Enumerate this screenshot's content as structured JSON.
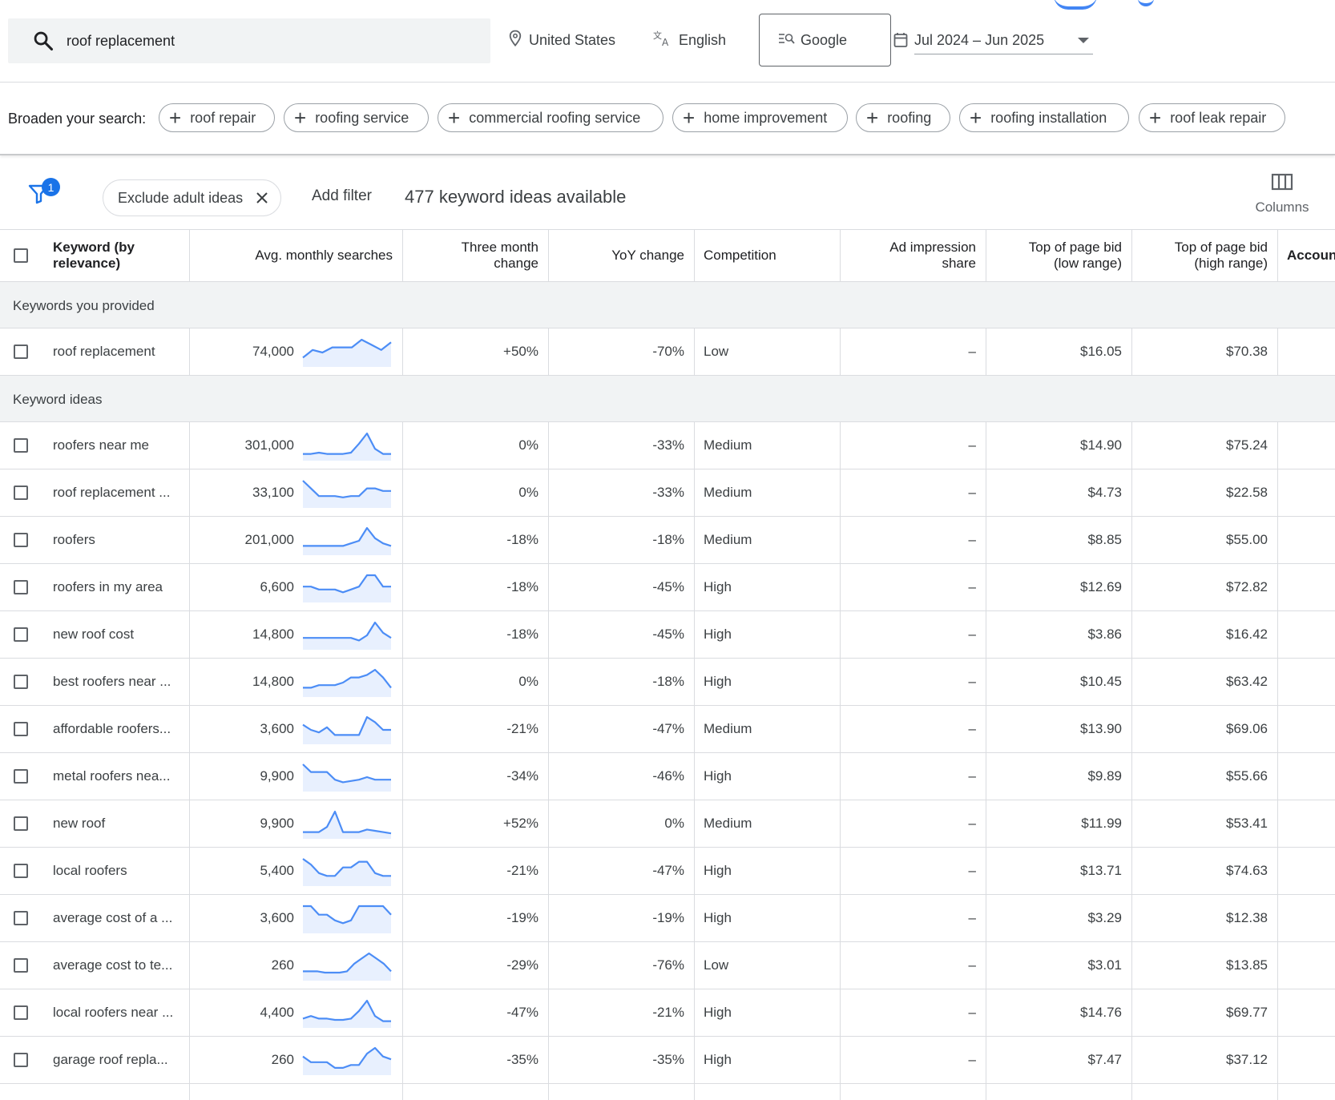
{
  "search": {
    "query": "roof replacement"
  },
  "location": "United States",
  "language": "English",
  "network": "Google",
  "date_range": "Jul 2024 – Jun 2025",
  "broaden": {
    "label": "Broaden your search:",
    "chips": [
      "roof repair",
      "roofing service",
      "commercial roofing service",
      "home improvement",
      "roofing",
      "roofing installation",
      "roof leak repair"
    ]
  },
  "filters": {
    "badge_count": "1",
    "exclude_chip": "Exclude adult ideas",
    "add_filter": "Add filter",
    "ideas_count": "477 keyword ideas available",
    "columns_label": "Columns"
  },
  "table": {
    "headers": {
      "keyword": [
        "Keyword (by",
        "relevance)"
      ],
      "avg": "Avg. monthly searches",
      "three_month": [
        "Three month",
        "change"
      ],
      "yoy": "YoY change",
      "competition": "Competition",
      "ad_share": [
        "Ad impression",
        "share"
      ],
      "bid_low": [
        "Top of page bid",
        "(low range)"
      ],
      "bid_high": [
        "Top of page bid",
        "(high range)"
      ],
      "account": "Accoun"
    },
    "sections": {
      "provided": "Keywords you provided",
      "ideas": "Keyword ideas"
    },
    "provided_rows": [
      {
        "keyword": "roof replacement",
        "avg": "74,000",
        "three_month": "+50%",
        "yoy": "-70%",
        "competition": "Low",
        "ad_share": "–",
        "bid_low": "$16.05",
        "bid_high": "$70.38",
        "trend": [
          3,
          6,
          5,
          7,
          7,
          7,
          10,
          8,
          6,
          9
        ]
      }
    ],
    "idea_rows": [
      {
        "keyword": "roofers near me",
        "avg": "301,000",
        "three_month": "0%",
        "yoy": "-33%",
        "competition": "Medium",
        "ad_share": "–",
        "bid_low": "$14.90",
        "bid_high": "$75.24",
        "trend": [
          2,
          2,
          2.5,
          2,
          2,
          2,
          2.5,
          6,
          10,
          4,
          2,
          2
        ]
      },
      {
        "keyword": "roof replacement ...",
        "avg": "33,100",
        "three_month": "0%",
        "yoy": "-33%",
        "competition": "Medium",
        "ad_share": "–",
        "bid_low": "$4.73",
        "bid_high": "$22.58",
        "trend": [
          10,
          7,
          4,
          4,
          4,
          3.5,
          4,
          4,
          7,
          7,
          6,
          6
        ]
      },
      {
        "keyword": "roofers",
        "avg": "201,000",
        "three_month": "-18%",
        "yoy": "-18%",
        "competition": "Medium",
        "ad_share": "–",
        "bid_low": "$8.85",
        "bid_high": "$55.00",
        "trend": [
          3,
          3,
          3,
          3,
          3,
          3,
          4,
          5,
          10,
          6,
          4,
          3
        ]
      },
      {
        "keyword": "roofers in my area",
        "avg": "6,600",
        "three_month": "-18%",
        "yoy": "-45%",
        "competition": "High",
        "ad_share": "–",
        "bid_low": "$12.69",
        "bid_high": "$72.82",
        "trend": [
          5,
          5,
          4,
          4,
          4,
          3,
          4,
          5,
          9,
          9,
          5,
          5
        ]
      },
      {
        "keyword": "new roof cost",
        "avg": "14,800",
        "three_month": "-18%",
        "yoy": "-45%",
        "competition": "High",
        "ad_share": "–",
        "bid_low": "$3.86",
        "bid_high": "$16.42",
        "trend": [
          4,
          4,
          4,
          4,
          4,
          4,
          4,
          3,
          5,
          10,
          6,
          4
        ]
      },
      {
        "keyword": "best roofers near ...",
        "avg": "14,800",
        "three_month": "0%",
        "yoy": "-18%",
        "competition": "High",
        "ad_share": "–",
        "bid_low": "$10.45",
        "bid_high": "$63.42",
        "trend": [
          3,
          3,
          4,
          4,
          4,
          5,
          7,
          7,
          8,
          10,
          7,
          3
        ]
      },
      {
        "keyword": "affordable roofers...",
        "avg": "3,600",
        "three_month": "-21%",
        "yoy": "-47%",
        "competition": "Medium",
        "ad_share": "–",
        "bid_low": "$13.90",
        "bid_high": "$69.06",
        "trend": [
          7,
          5,
          4,
          6,
          3,
          3,
          3,
          3,
          10,
          8,
          5,
          5
        ]
      },
      {
        "keyword": "metal roofers nea...",
        "avg": "9,900",
        "three_month": "-34%",
        "yoy": "-46%",
        "competition": "High",
        "ad_share": "–",
        "bid_low": "$9.89",
        "bid_high": "$55.66",
        "trend": [
          10,
          7,
          7,
          7,
          4,
          3,
          3.5,
          4,
          5,
          4,
          4,
          4
        ]
      },
      {
        "keyword": "new roof",
        "avg": "9,900",
        "three_month": "+52%",
        "yoy": "0%",
        "competition": "Medium",
        "ad_share": "–",
        "bid_low": "$11.99",
        "bid_high": "$53.41",
        "trend": [
          2,
          2,
          2,
          4,
          10,
          2,
          2,
          2,
          3,
          2.5,
          2,
          1.5
        ]
      },
      {
        "keyword": "local roofers",
        "avg": "5,400",
        "three_month": "-21%",
        "yoy": "-47%",
        "competition": "High",
        "ad_share": "–",
        "bid_low": "$13.71",
        "bid_high": "$74.63",
        "trend": [
          9,
          7,
          4,
          3,
          3,
          6,
          6,
          8,
          8,
          4,
          3,
          3
        ]
      },
      {
        "keyword": "average cost of a ...",
        "avg": "3,600",
        "three_month": "-19%",
        "yoy": "-19%",
        "competition": "High",
        "ad_share": "–",
        "bid_low": "$3.29",
        "bid_high": "$12.38",
        "trend": [
          9,
          9,
          6,
          6,
          4,
          3,
          4,
          9,
          9,
          9,
          9,
          6
        ]
      },
      {
        "keyword": "average cost to te...",
        "avg": "260",
        "three_month": "-29%",
        "yoy": "-76%",
        "competition": "Low",
        "ad_share": "–",
        "bid_low": "$3.01",
        "bid_high": "$13.85",
        "trend": [
          3,
          3,
          3,
          2.5,
          2.5,
          2.5,
          3,
          6,
          8,
          10,
          8,
          6,
          3
        ]
      },
      {
        "keyword": "local roofers near ...",
        "avg": "4,400",
        "three_month": "-47%",
        "yoy": "-21%",
        "competition": "High",
        "ad_share": "–",
        "bid_low": "$14.76",
        "bid_high": "$69.77",
        "trend": [
          3,
          4,
          3,
          3,
          2.5,
          2.5,
          3,
          6,
          10,
          4,
          2,
          2
        ]
      },
      {
        "keyword": "garage roof repla...",
        "avg": "260",
        "three_month": "-35%",
        "yoy": "-35%",
        "competition": "High",
        "ad_share": "–",
        "bid_low": "$7.47",
        "bid_high": "$37.12",
        "trend": [
          6,
          4,
          4,
          4,
          2,
          2,
          3,
          3,
          7,
          9,
          6,
          5
        ]
      }
    ]
  },
  "colors": {
    "accent": "#1a73e8",
    "spark_line": "#4c8df6",
    "spark_fill": "#e8f0fe",
    "section_bg": "#f1f3f4",
    "border": "#dadce0"
  }
}
